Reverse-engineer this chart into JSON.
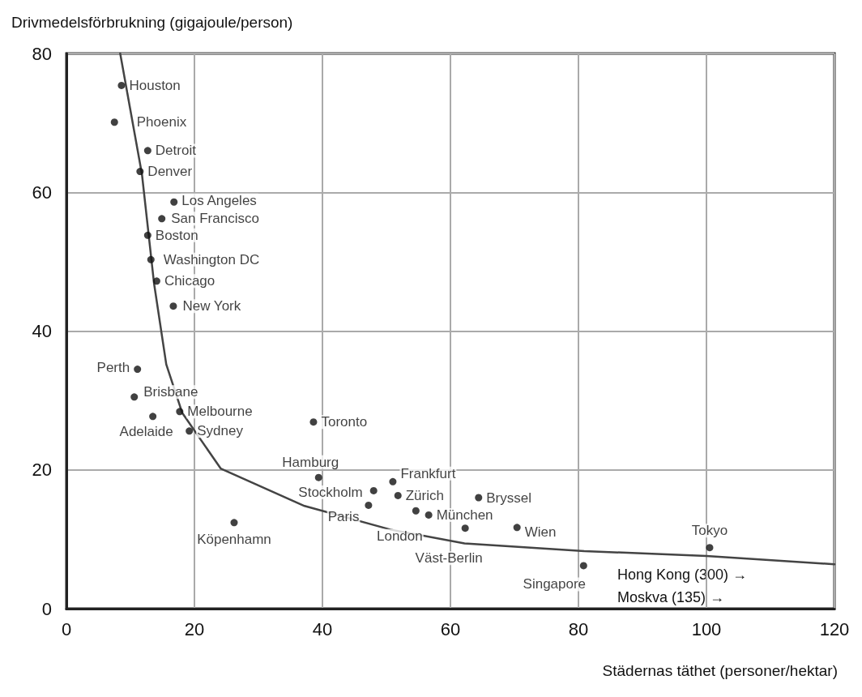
{
  "chart_data": {
    "type": "scatter",
    "ylabel": "Drivmedelsförbrukning (gigajoule/person)",
    "xlabel": "Städernas täthet (personer/hektar)",
    "xlim": [
      0,
      120
    ],
    "xticks": [
      0,
      20,
      40,
      60,
      80,
      100,
      120
    ],
    "ylim": [
      0,
      80
    ],
    "yticks": [
      0,
      20,
      40,
      60,
      80
    ],
    "grid": true,
    "series": [
      {
        "color": "#111111",
        "marker": "circle",
        "x": [
          8.6,
          7.5,
          12.7,
          11.5,
          16.8,
          14.9,
          12.7,
          13.2,
          14.1,
          16.7,
          11.1,
          10.6,
          13.5,
          17.7,
          19.2,
          38.6,
          39.4,
          26.2,
          48.0,
          47.2,
          51.0,
          51.8,
          54.6,
          56.6,
          64.4,
          62.3,
          70.4,
          100.5,
          80.8
        ],
        "values": [
          75.4,
          70.1,
          66.0,
          63.0,
          58.6,
          56.2,
          53.8,
          50.3,
          47.2,
          43.6,
          34.5,
          30.5,
          27.7,
          28.4,
          25.6,
          26.9,
          18.9,
          12.4,
          17.0,
          14.9,
          18.3,
          16.3,
          14.1,
          13.5,
          16.0,
          11.6,
          11.7,
          8.8,
          6.2
        ],
        "value_labels": [
          "Houston",
          "Phoenix",
          "Detroit",
          "Denver",
          "Los Angeles",
          "San Francisco",
          "Boston",
          "Washington DC",
          "Chicago",
          "New York",
          "Perth",
          "Brisbane",
          "Adelaide",
          "Melbourne",
          "Sydney",
          "Toronto",
          "Hamburg",
          "Köpenhamn",
          "Stockholm",
          "Paris",
          "Frankfurt",
          "Zürich",
          "London",
          "München",
          "Bryssel",
          "Väst-Berlin",
          "Wien",
          "Tokyo",
          "Singapore"
        ]
      },
      {
        "type": "line",
        "color": "#444444",
        "marker": "none",
        "line_style": "solid",
        "x": [
          8.4,
          11.8,
          13.7,
          15.6,
          18.1,
          24.1,
          37.2,
          50.6,
          62.2,
          80.9,
          100,
          120
        ],
        "values": [
          80,
          62.6,
          46.8,
          35.2,
          28.2,
          20.2,
          14.8,
          11.4,
          9.4,
          8.3,
          7.6,
          6.4
        ]
      }
    ],
    "annotations": [
      "Hong Kong (300) →",
      "Moskva (135) →"
    ]
  }
}
